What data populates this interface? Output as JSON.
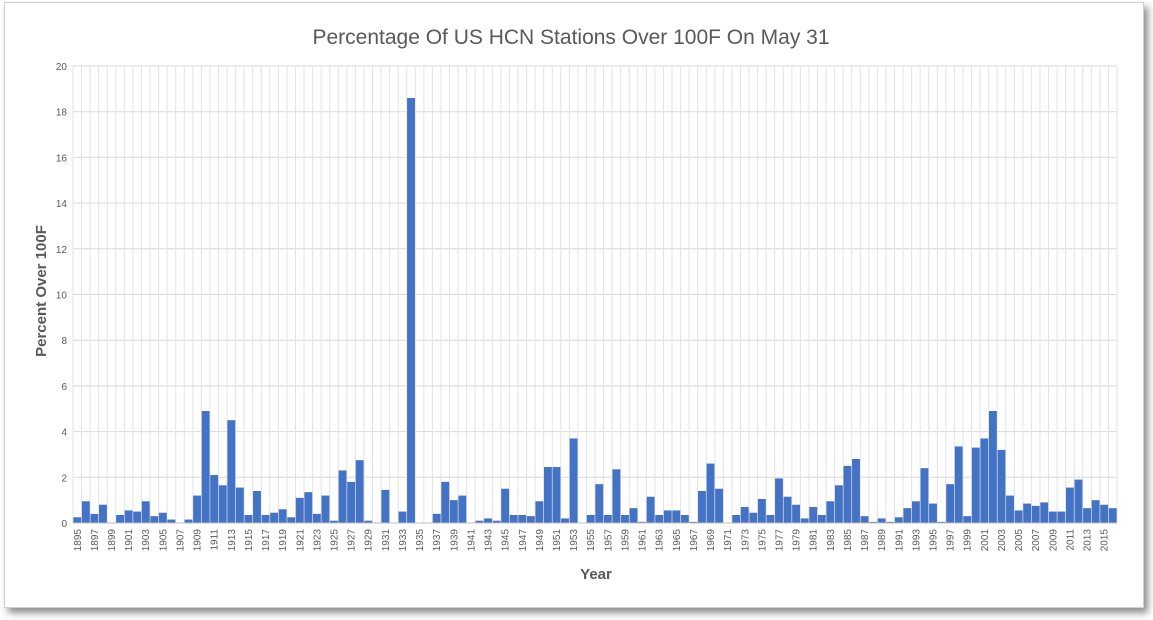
{
  "chart_data": {
    "type": "bar",
    "title": "Percentage Of US HCN Stations Over 100F On May 31",
    "xlabel": "Year",
    "ylabel": "Percent Over 100F",
    "ylim": [
      0,
      20
    ],
    "y_ticks": [
      0,
      2,
      4,
      6,
      8,
      10,
      12,
      14,
      16,
      18,
      20
    ],
    "grid": true,
    "legend": "none",
    "bar_color": "#4472C4",
    "categories": [
      1895,
      1896,
      1897,
      1898,
      1899,
      1900,
      1901,
      1902,
      1903,
      1904,
      1905,
      1906,
      1907,
      1908,
      1909,
      1910,
      1911,
      1912,
      1913,
      1914,
      1915,
      1916,
      1917,
      1918,
      1919,
      1920,
      1921,
      1922,
      1923,
      1924,
      1925,
      1926,
      1927,
      1928,
      1929,
      1930,
      1931,
      1932,
      1933,
      1934,
      1935,
      1936,
      1937,
      1938,
      1939,
      1940,
      1941,
      1942,
      1943,
      1944,
      1945,
      1946,
      1947,
      1948,
      1949,
      1950,
      1951,
      1952,
      1953,
      1954,
      1955,
      1956,
      1957,
      1958,
      1959,
      1960,
      1961,
      1962,
      1963,
      1964,
      1965,
      1966,
      1967,
      1968,
      1969,
      1970,
      1971,
      1972,
      1973,
      1974,
      1975,
      1976,
      1977,
      1978,
      1979,
      1980,
      1981,
      1982,
      1983,
      1984,
      1985,
      1986,
      1987,
      1988,
      1989,
      1990,
      1991,
      1992,
      1993,
      1994,
      1995,
      1996,
      1997,
      1998,
      1999,
      2000,
      2001,
      2002,
      2003,
      2004,
      2005,
      2006,
      2007,
      2008,
      2009,
      2010,
      2011,
      2012,
      2013,
      2014,
      2015,
      2016
    ],
    "x_tick_labels": [
      1895,
      1897,
      1899,
      1901,
      1903,
      1905,
      1907,
      1909,
      1911,
      1913,
      1915,
      1917,
      1919,
      1921,
      1923,
      1925,
      1927,
      1929,
      1931,
      1933,
      1935,
      1937,
      1939,
      1941,
      1943,
      1945,
      1947,
      1949,
      1951,
      1953,
      1955,
      1957,
      1959,
      1961,
      1963,
      1965,
      1967,
      1969,
      1971,
      1973,
      1975,
      1977,
      1979,
      1981,
      1983,
      1985,
      1987,
      1989,
      1991,
      1993,
      1995,
      1997,
      1999,
      2001,
      2003,
      2005,
      2007,
      2009,
      2011,
      2013,
      2015
    ],
    "values": [
      0.25,
      0.95,
      0.4,
      0.8,
      0,
      0.35,
      0.55,
      0.5,
      0.95,
      0.3,
      0.45,
      0.15,
      0,
      0.15,
      1.2,
      4.9,
      2.1,
      1.65,
      4.5,
      1.55,
      0.35,
      1.4,
      0.35,
      0.45,
      0.6,
      0.25,
      1.1,
      1.35,
      0.4,
      1.2,
      0.1,
      2.3,
      1.8,
      2.75,
      0.1,
      0,
      1.45,
      0,
      0.5,
      18.6,
      0,
      0,
      0.4,
      1.8,
      1.0,
      1.2,
      0,
      0.1,
      0.2,
      0.1,
      1.5,
      0.35,
      0.35,
      0.3,
      0.95,
      2.45,
      2.45,
      0.2,
      3.7,
      0,
      0.35,
      1.7,
      0.35,
      2.35,
      0.35,
      0.65,
      0.05,
      1.15,
      0.35,
      0.55,
      0.55,
      0.35,
      0.05,
      1.4,
      2.6,
      1.5,
      0,
      0.35,
      0.7,
      0.45,
      1.05,
      0.35,
      1.95,
      1.15,
      0.8,
      0.2,
      0.7,
      0.35,
      0.95,
      1.65,
      2.5,
      2.8,
      0.3,
      0.05,
      0.2,
      0.05,
      0.25,
      0.65,
      0.95,
      2.4,
      0.85,
      0.05,
      1.7,
      3.35,
      0.3,
      3.3,
      3.7,
      4.9,
      3.2,
      1.2,
      0.55,
      0.85,
      0.75,
      0.9,
      0.5,
      0.5,
      1.55,
      1.9,
      0.65,
      1.0,
      0.8,
      0.65
    ]
  }
}
